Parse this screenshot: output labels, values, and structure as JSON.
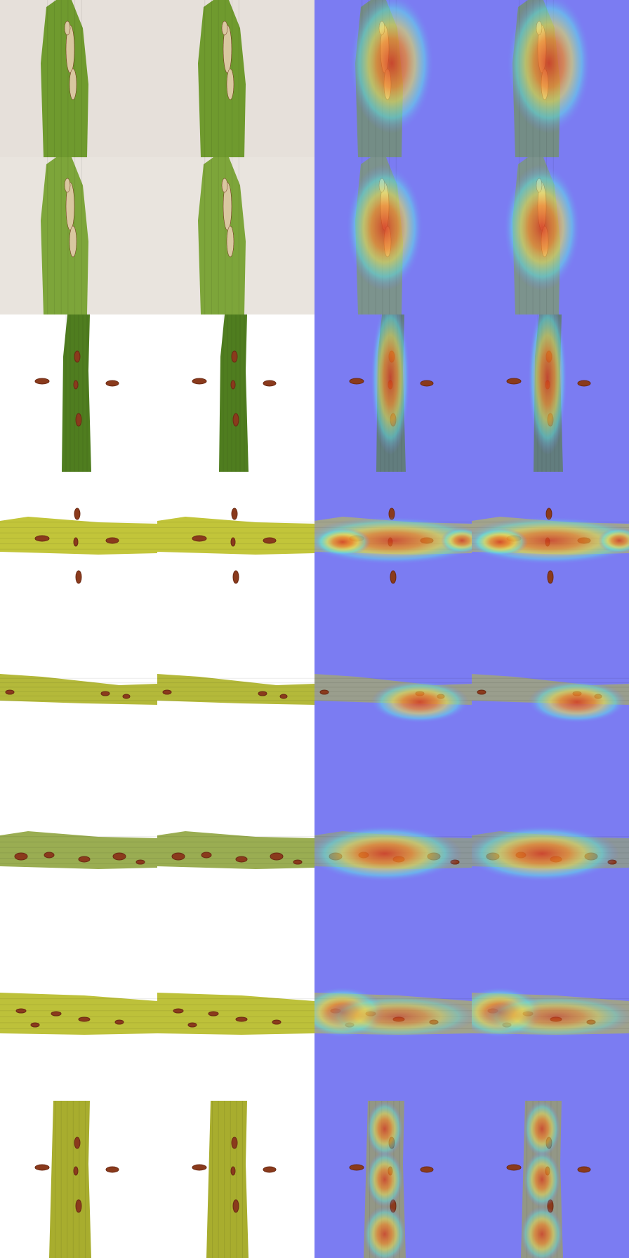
{
  "grid": {
    "columns": [
      "original-image",
      "original-image-copy",
      "heatmap-overlay",
      "heatmap-overlay-copy"
    ],
    "rows": [
      {
        "background": "#e6e0da",
        "leaf": "vertical-wide",
        "leaf_color": "#6f9a2e",
        "lesion": "tan-streak",
        "heat": "center-upper"
      },
      {
        "background": "#e9e4de",
        "leaf": "vertical-wide",
        "leaf_color": "#7da53a",
        "lesion": "tan-streak",
        "heat": "center"
      },
      {
        "background": "#ffffff",
        "leaf": "vertical-narrow",
        "leaf_color": "#4f7d1f",
        "lesion": "brown-spots",
        "heat": "narrow-vertical"
      },
      {
        "background": "#ffffff",
        "leaf": "horizontal",
        "leaf_color": "#c2c53a",
        "lesion": "brown-spots",
        "heat": "horizontal-band"
      },
      {
        "background": "#ffffff",
        "leaf": "horizontal-thin",
        "leaf_color": "#b4b93a",
        "lesion": "small-spots",
        "heat": "right-spot"
      },
      {
        "background": "#ffffff",
        "leaf": "horizontal",
        "leaf_color": "#9aad52",
        "lesion": "ring-spots",
        "heat": "wide-band"
      },
      {
        "background": "#ffffff",
        "leaf": "horizontal-wide",
        "leaf_color": "#bdc13a",
        "lesion": "oval-spots",
        "heat": "left-band"
      },
      {
        "background": "#ffffff",
        "leaf": "vertical-medium",
        "leaf_color": "#a8ad2e",
        "lesion": "brown-spots",
        "heat": "vertical-triple"
      }
    ],
    "heatmap_colors": {
      "cold": "#7b7cf2",
      "cyan": "#5fe5e8",
      "yellow": "#e8e05a",
      "hot": "#d63a1f"
    }
  }
}
